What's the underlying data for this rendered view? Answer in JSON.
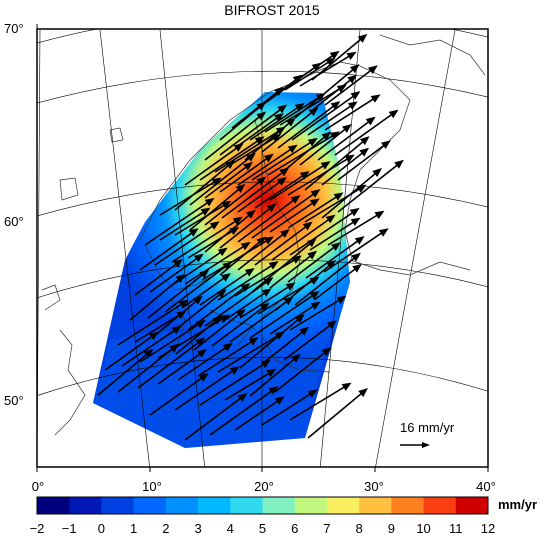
{
  "title": "BIFROST 2015",
  "lat_labels": [
    "70°",
    "60°",
    "50°"
  ],
  "lon_labels": [
    "0°",
    "10°",
    "20°",
    "30°",
    "40°"
  ],
  "colorbar": {
    "unit": "mm/yr",
    "ticks": [
      "−2",
      "−1",
      "0",
      "1",
      "2",
      "3",
      "4",
      "5",
      "6",
      "7",
      "8",
      "9",
      "10",
      "11",
      "12"
    ],
    "colors": [
      "#00007f",
      "#0018b4",
      "#0040e0",
      "#0068ff",
      "#0090ff",
      "#00b8ff",
      "#30d8f0",
      "#80f0c0",
      "#c0f880",
      "#f8f060",
      "#ffc040",
      "#ff8020",
      "#f84010",
      "#d00000"
    ]
  },
  "scale_arrow_label": "16 mm/yr",
  "colors": {
    "coast": "#333333",
    "grid": "#000000",
    "arrow": "#000000"
  }
}
